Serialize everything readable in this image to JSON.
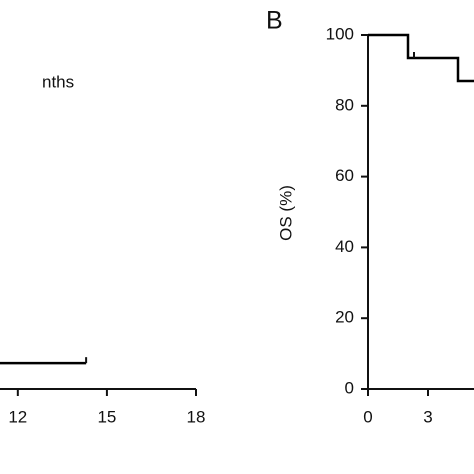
{
  "chart_data": [
    {
      "type": "line",
      "step": true,
      "annotation": "nths",
      "xlim": [
        11.4,
        18
      ],
      "xticks": [
        12,
        15,
        18
      ],
      "ylim": [
        0,
        100
      ],
      "series": [
        {
          "color": "#000000",
          "x": [
            11.4,
            14.3
          ],
          "values": [
            7.3,
            7.3
          ]
        }
      ],
      "censor_x": [
        14.3
      ],
      "censor_values": [
        7.3
      ]
    },
    {
      "type": "line",
      "step": true,
      "panel_label": "B",
      "y_label": "OS (%)",
      "xlim": [
        0,
        5.3
      ],
      "xticks": [
        0,
        3
      ],
      "ylim": [
        0,
        100
      ],
      "yticks": [
        0,
        20,
        40,
        60,
        80,
        100
      ],
      "series": [
        {
          "color": "#000000",
          "x": [
            0,
            2,
            4.5,
            5.3
          ],
          "values": [
            100,
            93.5,
            87,
            87
          ]
        }
      ],
      "censor_x": [
        2.3
      ],
      "censor_values": [
        93.5
      ]
    }
  ]
}
